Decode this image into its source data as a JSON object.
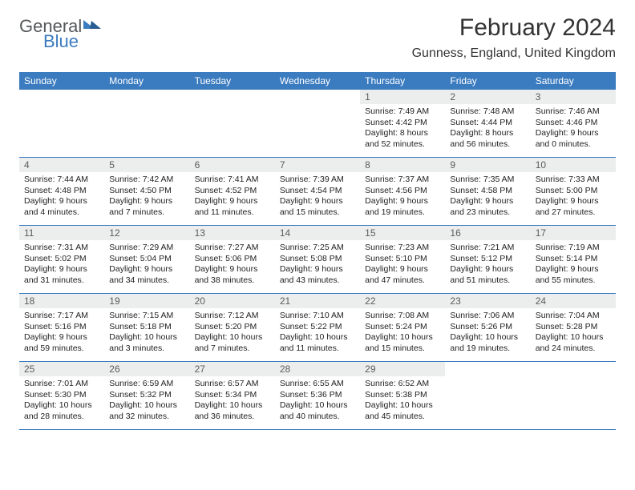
{
  "logo": {
    "text1": "General",
    "text2": "Blue"
  },
  "title": "February 2024",
  "location": "Gunness, England, United Kingdom",
  "colors": {
    "header_bg": "#3b7bbf",
    "header_text": "#ffffff",
    "band_bg": "#eceded",
    "band_text": "#5b5b5b",
    "rule": "#3b7bbf",
    "body_text": "#222222",
    "page_bg": "#ffffff",
    "title_text": "#333333",
    "logo_gray": "#56595b",
    "logo_blue": "#3b7bbf"
  },
  "daysOfWeek": [
    "Sunday",
    "Monday",
    "Tuesday",
    "Wednesday",
    "Thursday",
    "Friday",
    "Saturday"
  ],
  "weeks": [
    [
      null,
      null,
      null,
      null,
      {
        "n": "1",
        "sunrise": "7:49 AM",
        "sunset": "4:42 PM",
        "daylight": "8 hours and 52 minutes."
      },
      {
        "n": "2",
        "sunrise": "7:48 AM",
        "sunset": "4:44 PM",
        "daylight": "8 hours and 56 minutes."
      },
      {
        "n": "3",
        "sunrise": "7:46 AM",
        "sunset": "4:46 PM",
        "daylight": "9 hours and 0 minutes."
      }
    ],
    [
      {
        "n": "4",
        "sunrise": "7:44 AM",
        "sunset": "4:48 PM",
        "daylight": "9 hours and 4 minutes."
      },
      {
        "n": "5",
        "sunrise": "7:42 AM",
        "sunset": "4:50 PM",
        "daylight": "9 hours and 7 minutes."
      },
      {
        "n": "6",
        "sunrise": "7:41 AM",
        "sunset": "4:52 PM",
        "daylight": "9 hours and 11 minutes."
      },
      {
        "n": "7",
        "sunrise": "7:39 AM",
        "sunset": "4:54 PM",
        "daylight": "9 hours and 15 minutes."
      },
      {
        "n": "8",
        "sunrise": "7:37 AM",
        "sunset": "4:56 PM",
        "daylight": "9 hours and 19 minutes."
      },
      {
        "n": "9",
        "sunrise": "7:35 AM",
        "sunset": "4:58 PM",
        "daylight": "9 hours and 23 minutes."
      },
      {
        "n": "10",
        "sunrise": "7:33 AM",
        "sunset": "5:00 PM",
        "daylight": "9 hours and 27 minutes."
      }
    ],
    [
      {
        "n": "11",
        "sunrise": "7:31 AM",
        "sunset": "5:02 PM",
        "daylight": "9 hours and 31 minutes."
      },
      {
        "n": "12",
        "sunrise": "7:29 AM",
        "sunset": "5:04 PM",
        "daylight": "9 hours and 34 minutes."
      },
      {
        "n": "13",
        "sunrise": "7:27 AM",
        "sunset": "5:06 PM",
        "daylight": "9 hours and 38 minutes."
      },
      {
        "n": "14",
        "sunrise": "7:25 AM",
        "sunset": "5:08 PM",
        "daylight": "9 hours and 43 minutes."
      },
      {
        "n": "15",
        "sunrise": "7:23 AM",
        "sunset": "5:10 PM",
        "daylight": "9 hours and 47 minutes."
      },
      {
        "n": "16",
        "sunrise": "7:21 AM",
        "sunset": "5:12 PM",
        "daylight": "9 hours and 51 minutes."
      },
      {
        "n": "17",
        "sunrise": "7:19 AM",
        "sunset": "5:14 PM",
        "daylight": "9 hours and 55 minutes."
      }
    ],
    [
      {
        "n": "18",
        "sunrise": "7:17 AM",
        "sunset": "5:16 PM",
        "daylight": "9 hours and 59 minutes."
      },
      {
        "n": "19",
        "sunrise": "7:15 AM",
        "sunset": "5:18 PM",
        "daylight": "10 hours and 3 minutes."
      },
      {
        "n": "20",
        "sunrise": "7:12 AM",
        "sunset": "5:20 PM",
        "daylight": "10 hours and 7 minutes."
      },
      {
        "n": "21",
        "sunrise": "7:10 AM",
        "sunset": "5:22 PM",
        "daylight": "10 hours and 11 minutes."
      },
      {
        "n": "22",
        "sunrise": "7:08 AM",
        "sunset": "5:24 PM",
        "daylight": "10 hours and 15 minutes."
      },
      {
        "n": "23",
        "sunrise": "7:06 AM",
        "sunset": "5:26 PM",
        "daylight": "10 hours and 19 minutes."
      },
      {
        "n": "24",
        "sunrise": "7:04 AM",
        "sunset": "5:28 PM",
        "daylight": "10 hours and 24 minutes."
      }
    ],
    [
      {
        "n": "25",
        "sunrise": "7:01 AM",
        "sunset": "5:30 PM",
        "daylight": "10 hours and 28 minutes."
      },
      {
        "n": "26",
        "sunrise": "6:59 AM",
        "sunset": "5:32 PM",
        "daylight": "10 hours and 32 minutes."
      },
      {
        "n": "27",
        "sunrise": "6:57 AM",
        "sunset": "5:34 PM",
        "daylight": "10 hours and 36 minutes."
      },
      {
        "n": "28",
        "sunrise": "6:55 AM",
        "sunset": "5:36 PM",
        "daylight": "10 hours and 40 minutes."
      },
      {
        "n": "29",
        "sunrise": "6:52 AM",
        "sunset": "5:38 PM",
        "daylight": "10 hours and 45 minutes."
      },
      null,
      null
    ]
  ],
  "labels": {
    "sunrise": "Sunrise:",
    "sunset": "Sunset:",
    "daylight": "Daylight:"
  }
}
